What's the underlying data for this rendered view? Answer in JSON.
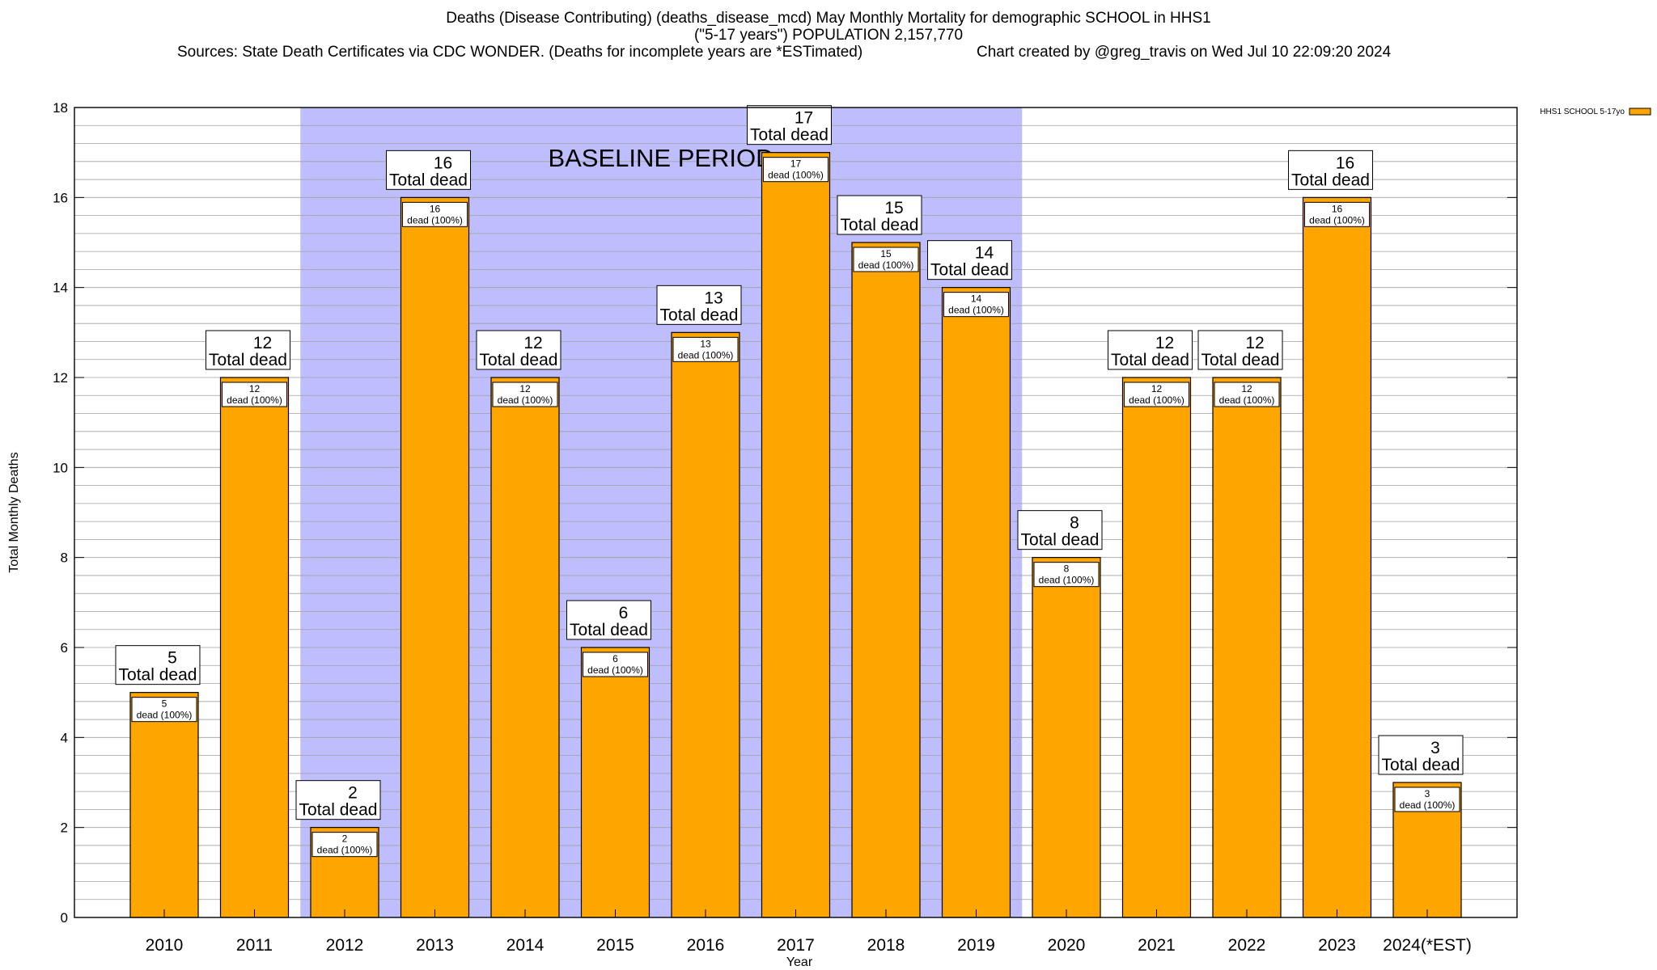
{
  "header": {
    "title_line1": "Deaths (Disease Contributing) (deaths_disease_mcd) May Monthly Mortality for demographic SCHOOL in HHS1",
    "title_line2": "(\"5-17 years\") POPULATION 2,157,770",
    "sources": "Sources: State Death Certificates via CDC WONDER. (Deaths for incomplete years are *ESTimated)",
    "credit": "Chart created by @greg_travis on Wed Jul 10 22:09:20 2024"
  },
  "colors": {
    "bar_fill": "#FFA500",
    "bar_stroke": "#000000",
    "baseline_band": "#BEBEFF",
    "grid": "#A0A0A0"
  },
  "chart_data": {
    "type": "bar",
    "xlabel": "Year",
    "ylabel": "Total Monthly Deaths",
    "ylim": [
      0,
      18
    ],
    "y_major_ticks": [
      0,
      2,
      4,
      6,
      8,
      10,
      12,
      14,
      16,
      18
    ],
    "y_minor_step": 0.4,
    "categories": [
      "2010",
      "2011",
      "2012",
      "2013",
      "2014",
      "2015",
      "2016",
      "2017",
      "2018",
      "2019",
      "2020",
      "2021",
      "2022",
      "2023",
      "2024(*EST)"
    ],
    "values": [
      5,
      12,
      2,
      16,
      12,
      6,
      13,
      17,
      15,
      14,
      8,
      12,
      12,
      16,
      3
    ],
    "bar_inner_labels": [
      "5",
      "12",
      "2",
      "16",
      "12",
      "6",
      "13",
      "17",
      "15",
      "14",
      "8",
      "12",
      "12",
      "16",
      "3"
    ],
    "inner_label_suffix": "dead (100%)",
    "total_label_suffix": "Total dead",
    "baseline": {
      "label": "BASELINE PERIOD",
      "start_category": "2012",
      "end_category": "2019"
    },
    "legend": {
      "label": "HHS1 SCHOOL 5-17yo",
      "position": "top-right"
    }
  }
}
